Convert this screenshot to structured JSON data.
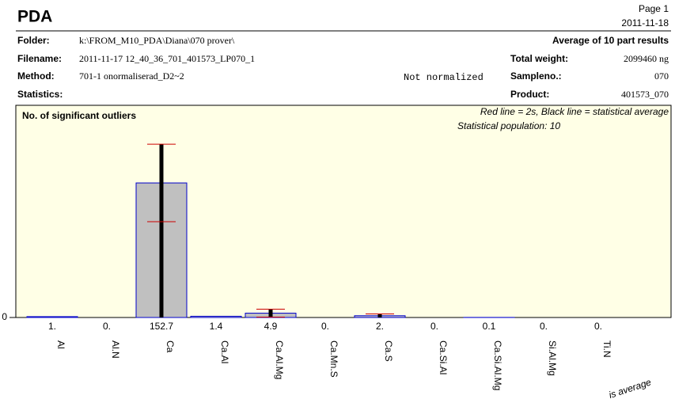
{
  "header": {
    "title": "PDA",
    "page": "Page 1",
    "date": "2011-11-18"
  },
  "info": {
    "folder_label": "Folder:",
    "folder": "k:\\FROM_M10_PDA\\Diana\\070 prover\\",
    "filename_label": "Filename:",
    "filename": "2011-11-17 12_40_36_701_401573_LP070_1",
    "method_label": "Method:",
    "method": "701-1 onormaliserad_D2~2",
    "normalization": "Not normalized",
    "statistics_label": "Statistics:",
    "average_note": "Average of 10 part results",
    "total_weight_label": "Total weight:",
    "total_weight": "2099460 ng",
    "sampleno_label": "Sampleno.:",
    "sampleno": "070",
    "product_label": "Product:",
    "product": "401573_070"
  },
  "chart_data": {
    "type": "bar",
    "title": "No. of significant outliers",
    "legend_note": "Red line = 2s, Black line = statistical average",
    "population": "Statistical population: 10",
    "categories": [
      "Al",
      "Al.N",
      "Ca",
      "Ca.Al",
      "Ca.Al.Mg",
      "Ca.Mn.S",
      "Ca.S",
      "Ca.Si.Al",
      "Ca.Si.Al.Mg",
      "Si.Al.Mg",
      "Ti.N"
    ],
    "values": [
      1,
      0,
      152.7,
      1.4,
      4.9,
      0,
      2,
      0,
      0.1,
      0,
      0
    ],
    "value_labels": [
      "1.",
      "0.",
      "152.7",
      "1.4",
      "4.9",
      "0.",
      "2.",
      "0.",
      "0.1",
      "0.",
      "0."
    ],
    "errors": [
      0,
      0,
      44,
      0,
      4.5,
      0,
      2,
      0,
      0,
      0,
      0
    ],
    "color": "#c0c0c0",
    "edge_color": "#0000cc",
    "error_color": "#cc0000",
    "ylim": [
      0,
      239
    ],
    "yticks": [
      0
    ]
  },
  "footer_fragment": "is average"
}
